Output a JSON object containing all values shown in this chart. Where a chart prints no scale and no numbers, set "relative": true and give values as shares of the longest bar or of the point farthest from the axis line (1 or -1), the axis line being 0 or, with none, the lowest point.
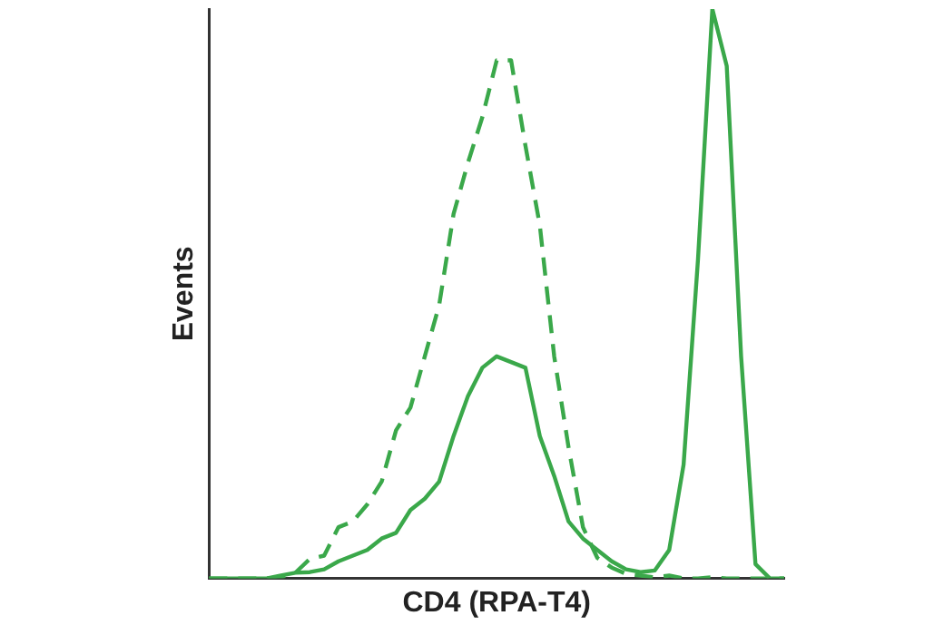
{
  "chart_data": {
    "type": "line",
    "relative": true,
    "xlabel": "CD4 (RPA-T4)",
    "ylabel": "Events",
    "legend": false,
    "tick_labels": false,
    "grid": false,
    "marker": "none",
    "categories": [
      null,
      null,
      null,
      null,
      null,
      null,
      null,
      null,
      null,
      null,
      null,
      null,
      null,
      null,
      null,
      null,
      null,
      null,
      null,
      null,
      null,
      null,
      null,
      null,
      null,
      null,
      null,
      null,
      null,
      null,
      null,
      null,
      null,
      null,
      null,
      null,
      null,
      null,
      null,
      null,
      null
    ],
    "series": [
      {
        "color": "#3aa84a",
        "line_style": "solid",
        "values": [
          0,
          0,
          0,
          0,
          0,
          0.005,
          0.01,
          0.011,
          0.016,
          0.03,
          0.04,
          0.05,
          0.07,
          0.08,
          0.12,
          0.14,
          0.17,
          0.25,
          0.32,
          0.37,
          0.39,
          0.38,
          0.37,
          0.25,
          0.18,
          0.1,
          0.07,
          0.05,
          0.03,
          0.016,
          0.011,
          0.014,
          0.05,
          0.2,
          0.56,
          1,
          0.9,
          0.39,
          0.025,
          0,
          0
        ]
      },
      {
        "color": "#3aa84a",
        "line_style": "dashed",
        "values": [
          0,
          0,
          0,
          0,
          0,
          0.002,
          0.01,
          0.034,
          0.04,
          0.09,
          0.1,
          0.13,
          0.17,
          0.26,
          0.3,
          0.39,
          0.48,
          0.64,
          0.73,
          0.81,
          0.91,
          0.91,
          0.76,
          0.62,
          0.39,
          0.23,
          0.09,
          0.036,
          0.019,
          0.008,
          0.005,
          0.002,
          0.005,
          0,
          0,
          0.002,
          0,
          0,
          0,
          0,
          0
        ]
      }
    ]
  }
}
